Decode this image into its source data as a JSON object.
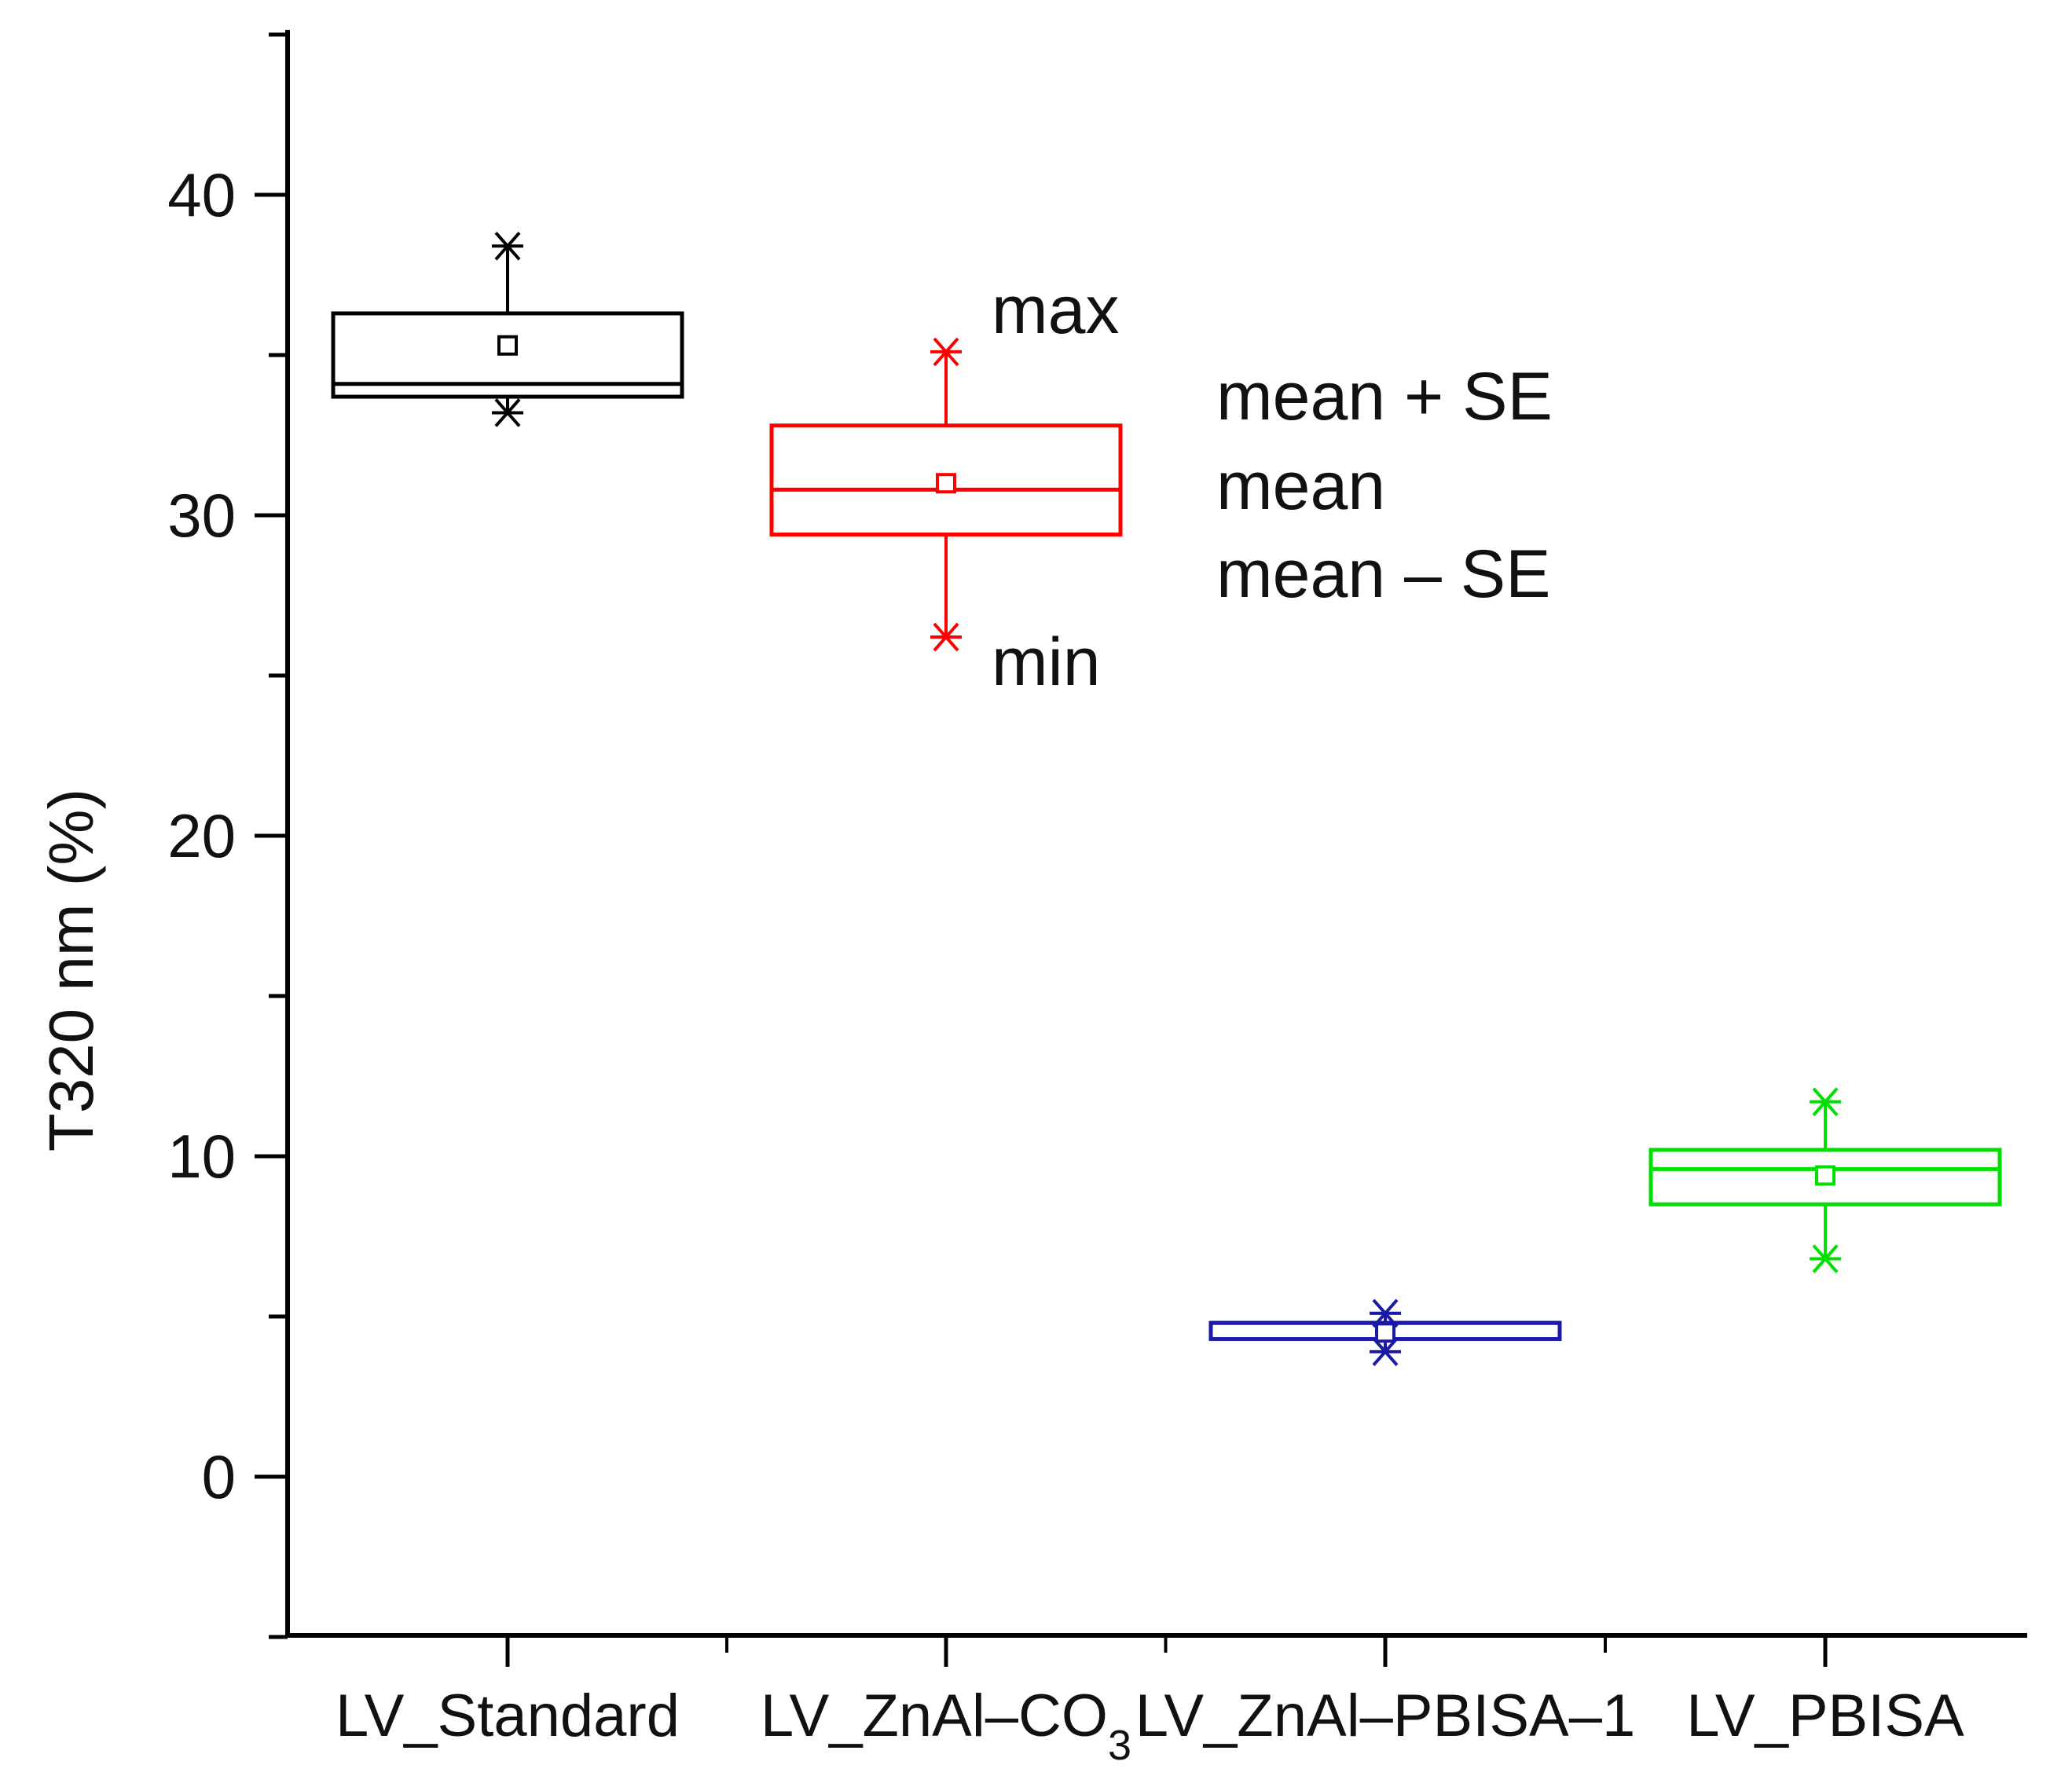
{
  "chart_data": {
    "type": "box",
    "title": "",
    "xlabel": "",
    "ylabel": "T320 nm (%)",
    "ylim": [
      -5,
      45
    ],
    "yticks": [
      0,
      10,
      20,
      30,
      40
    ],
    "ytick_labels": [
      "0",
      "10",
      "20",
      "30",
      "40"
    ],
    "grid": false,
    "categories": [
      {
        "label_main": "LV_Standard",
        "label_sub": "",
        "label_tail": ""
      },
      {
        "label_main": "LV_ZnAl–CO",
        "label_sub": "3",
        "label_tail": ""
      },
      {
        "label_main": "LV_ZnAl–PBISA–1",
        "label_sub": "",
        "label_tail": ""
      },
      {
        "label_main": "LV_PBISA",
        "label_sub": "",
        "label_tail": ""
      }
    ],
    "series": [
      {
        "name": "LV_Standard",
        "color": "#000000",
        "min": 33.2,
        "box_low": 33.7,
        "median": 34.1,
        "mean": 35.3,
        "box_high": 36.3,
        "max": 38.4
      },
      {
        "name": "LV_ZnAl–CO3",
        "color": "#ff0000",
        "min": 26.2,
        "box_low": 29.4,
        "median": 30.8,
        "mean": 31.0,
        "box_high": 32.8,
        "max": 35.1
      },
      {
        "name": "LV_ZnAl–PBISA–1",
        "color": "#1a1aa6",
        "min": 3.9,
        "box_low": 4.3,
        "median": 4.8,
        "mean": 4.5,
        "box_high": 4.8,
        "max": 5.1
      },
      {
        "name": "LV_PBISA",
        "color": "#00e000",
        "min": 6.8,
        "box_low": 8.5,
        "median": 9.6,
        "mean": 9.4,
        "box_high": 10.2,
        "max": 11.7
      }
    ],
    "annotations": {
      "max": "max",
      "mean_plus_se": "mean + SE",
      "mean": "mean",
      "mean_minus_se": "mean – SE",
      "min": "min"
    }
  }
}
